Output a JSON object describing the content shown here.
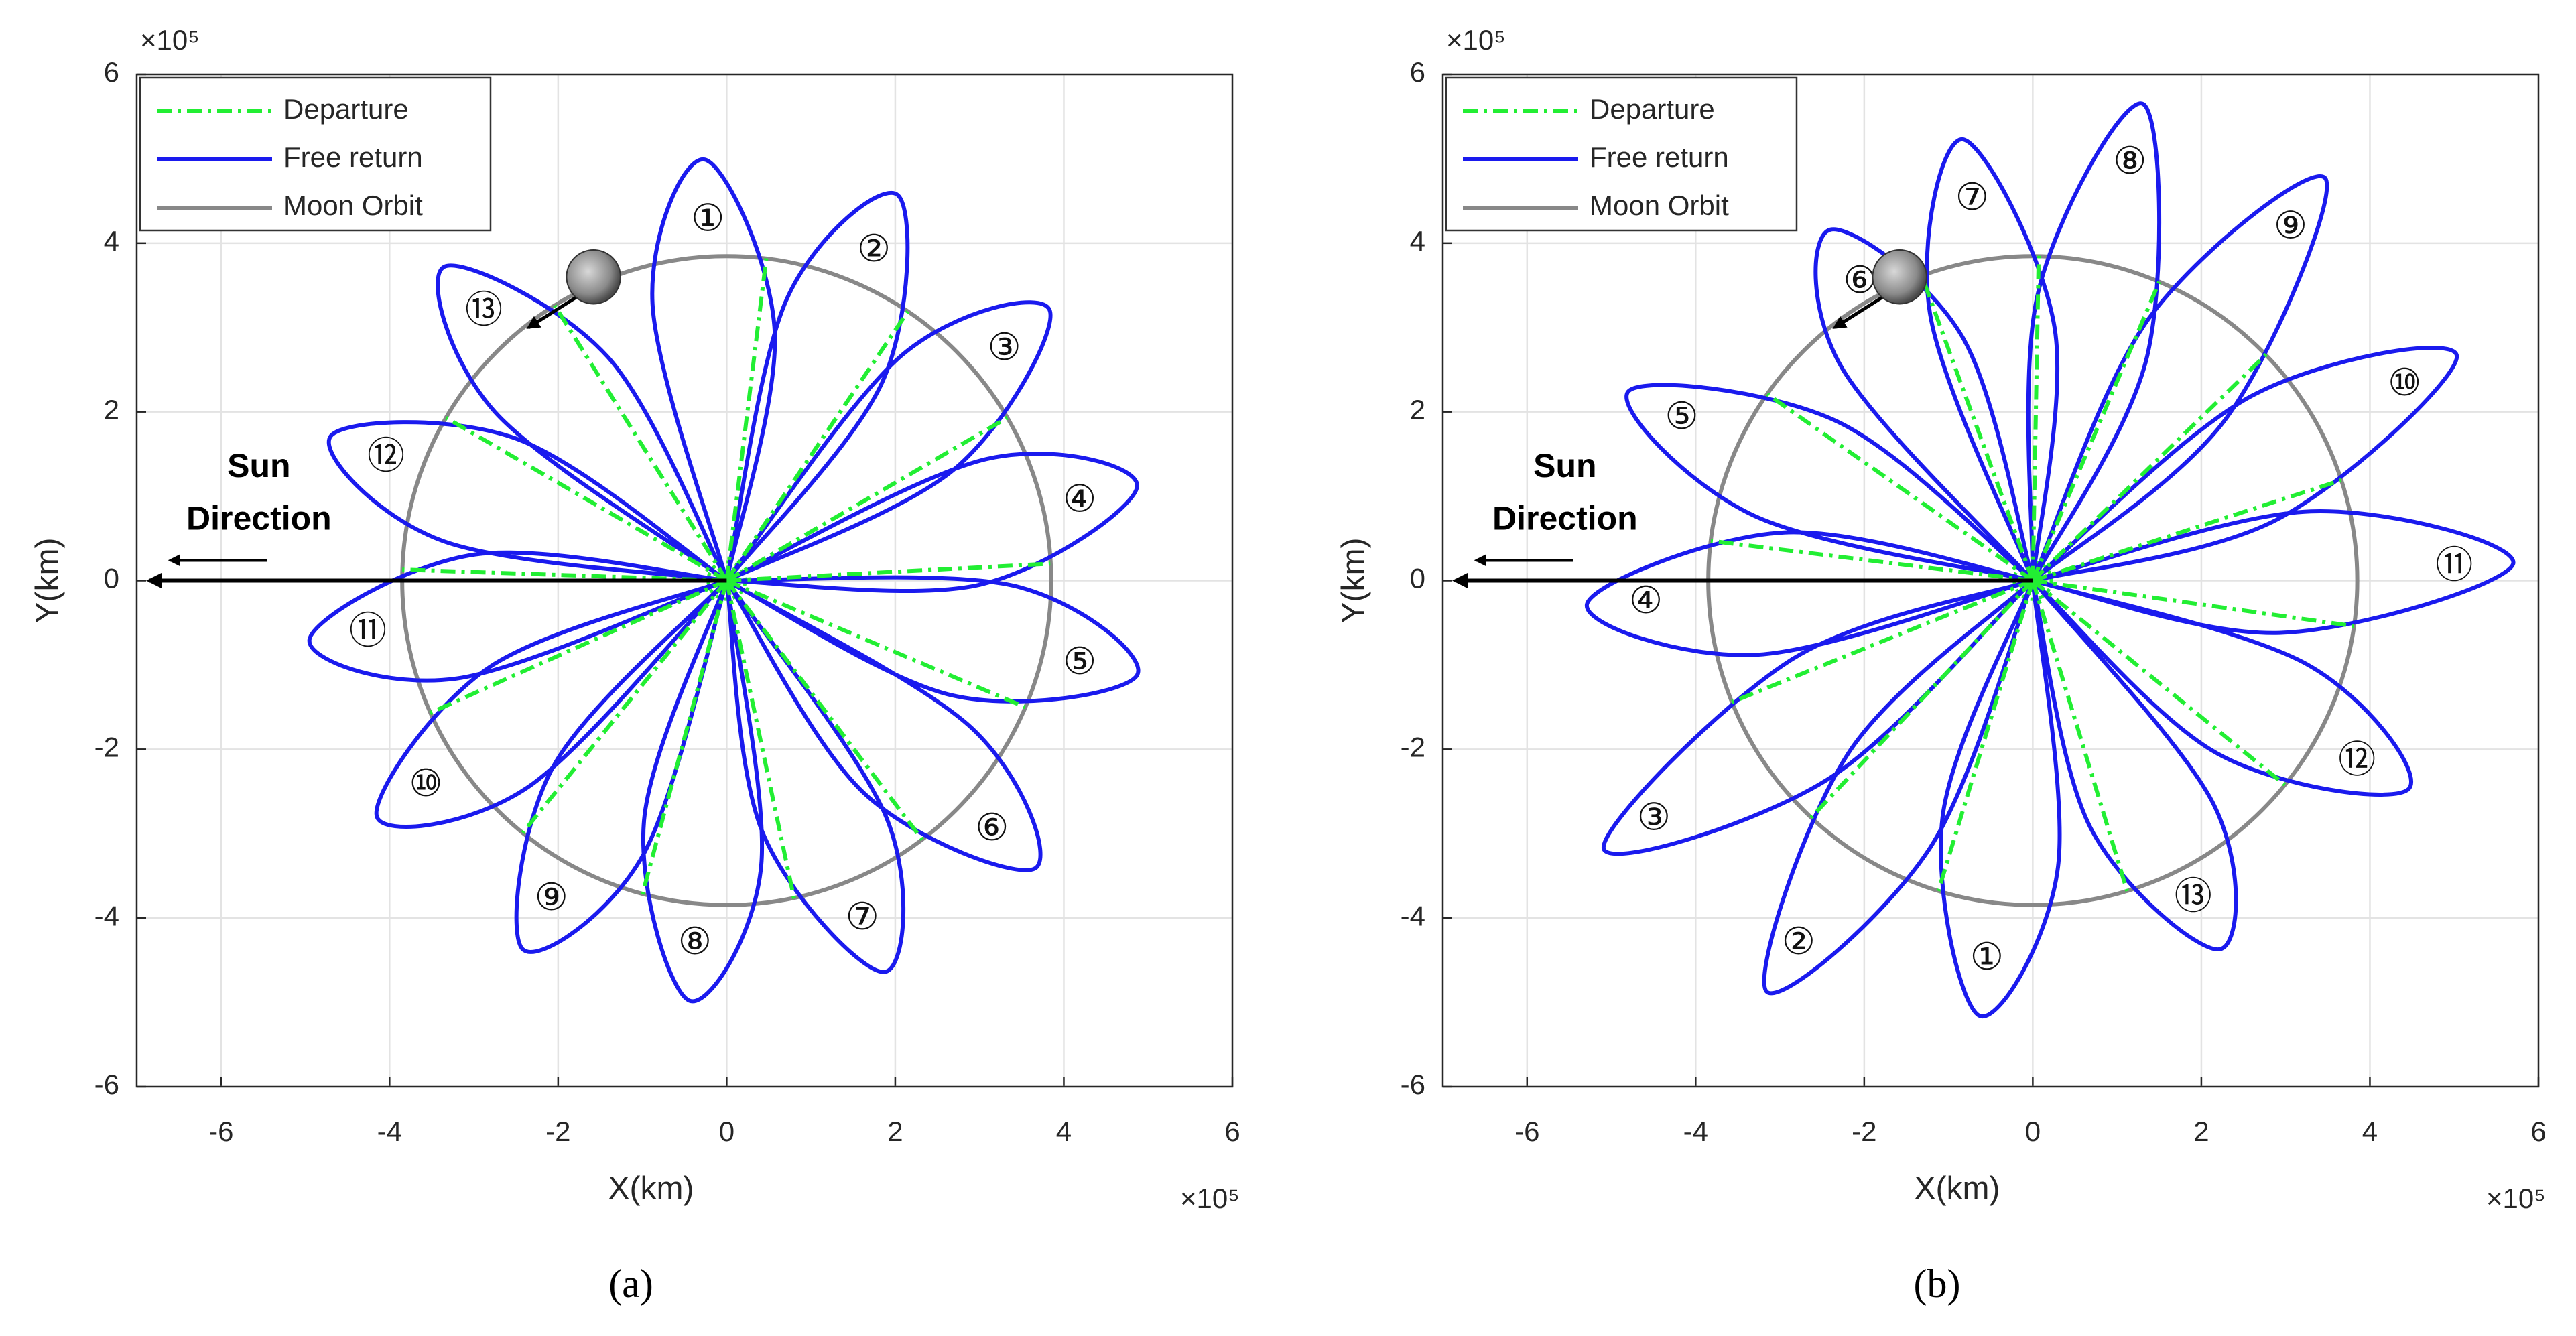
{
  "chart_data": [
    {
      "type": "line",
      "caption": "(a)",
      "x_label": "X(km)",
      "y_label": "Y(km)",
      "x_multiplier": "×10⁵",
      "y_multiplier": "×10⁵",
      "xlim": [
        -7,
        6
      ],
      "ylim": [
        -6,
        6
      ],
      "xticks": [
        -6,
        -4,
        -2,
        0,
        2,
        4,
        6
      ],
      "yticks": [
        -6,
        -4,
        -2,
        0,
        2,
        4,
        6
      ],
      "grid": true,
      "legend": "upper left",
      "annotation": [
        "Sun",
        "Direction"
      ],
      "loop_labels": [
        "①",
        "②",
        "③",
        "④",
        "⑤",
        "⑥",
        "⑦",
        "⑧",
        "⑨",
        "⑩",
        "⑪",
        "⑫",
        "⑬"
      ],
      "series": [
        {
          "name": "Departure",
          "color": "#22ee33",
          "line_style": "-.",
          "x": [
            0,
            0.47,
            null,
            0,
            2.15,
            null,
            0,
            3.33,
            null,
            0,
            3.84,
            null,
            0,
            3.54,
            null,
            0,
            2.32,
            null,
            0,
            0.8,
            null,
            0,
            -1.0,
            null,
            0,
            -2.42,
            null,
            0,
            -3.52,
            null,
            0,
            -3.85,
            null,
            0,
            -3.33,
            null,
            0,
            -2.04
          ],
          "y": [
            0,
            3.82,
            null,
            0,
            3.19,
            null,
            0,
            1.93,
            null,
            0,
            0.2,
            null,
            0,
            -1.5,
            null,
            0,
            -3.07,
            null,
            0,
            -3.77,
            null,
            0,
            -3.72,
            null,
            0,
            -2.99,
            null,
            0,
            -1.57,
            null,
            0,
            0.13,
            null,
            0,
            1.93,
            null,
            0,
            3.26
          ]
        },
        {
          "name": "Free return",
          "color": "#1a1aee",
          "line_style": "-",
          "x": [
            0,
            0.57,
            -0.26,
            -0.88,
            0,
            null,
            0,
            1.85,
            2.03,
            0.71,
            0,
            null,
            0,
            2.7,
            3.83,
            2.09,
            0,
            null,
            0,
            3.0,
            4.87,
            3.08,
            0,
            null,
            0,
            2.67,
            4.87,
            3.4,
            0,
            null,
            0,
            1.63,
            3.66,
            2.91,
            0,
            null,
            0,
            0.42,
            1.87,
            1.9,
            0,
            null,
            0,
            -0.98,
            -0.44,
            0.41,
            0,
            null,
            0,
            -2.05,
            -2.42,
            -0.99,
            0,
            null,
            0,
            -2.82,
            -4.15,
            -2.36,
            0,
            null,
            0,
            -2.98,
            -4.95,
            -3.2,
            0,
            null,
            0,
            -2.49,
            -4.7,
            -3.37,
            0,
            null,
            0,
            -1.41,
            -3.35,
            -2.75,
            0
          ],
          "y": [
            0,
            2.95,
            4.99,
            3.28,
            0,
            null,
            0,
            2.36,
            4.57,
            3.33,
            0,
            null,
            0,
            1.32,
            3.21,
            2.68,
            0,
            null,
            0,
            -0.05,
            1.12,
            1.44,
            0,
            null,
            0,
            -1.36,
            -1.12,
            -0.06,
            0,
            null,
            0,
            -2.52,
            -3.41,
            -1.75,
            0,
            null,
            0,
            -2.97,
            -4.64,
            -2.82,
            0,
            null,
            0,
            -2.84,
            -4.98,
            -3.37,
            0,
            null,
            0,
            -2.19,
            -4.37,
            -3.25,
            0,
            null,
            0,
            -1.03,
            -2.8,
            -2.45,
            0,
            null,
            0,
            0.31,
            -0.7,
            -1.16,
            0,
            null,
            0,
            1.68,
            1.71,
            0.47,
            0,
            null,
            0,
            2.65,
            3.72,
            2.0,
            0
          ]
        },
        {
          "name": "Moon Orbit",
          "color": "#888888",
          "line_style": "-",
          "radius": 3.85
        }
      ]
    },
    {
      "type": "line",
      "caption": "(b)",
      "x_label": "X(km)",
      "y_label": "Y(km)",
      "x_multiplier": "×10⁵",
      "y_multiplier": "×10⁵",
      "xlim": [
        -7,
        6
      ],
      "ylim": [
        -6,
        6
      ],
      "xticks": [
        -6,
        -4,
        -2,
        0,
        2,
        4,
        6
      ],
      "yticks": [
        -6,
        -4,
        -2,
        0,
        2,
        4,
        6
      ],
      "grid": true,
      "legend": "upper left",
      "annotation": [
        "Sun",
        "Direction"
      ],
      "loop_labels": [
        "①",
        "②",
        "③",
        "④",
        "⑤",
        "⑥",
        "⑦",
        "⑧",
        "⑨",
        "⑩",
        "⑪",
        "⑫",
        "⑬"
      ],
      "series": [
        {
          "name": "Departure",
          "color": "#22ee33",
          "line_style": "-.",
          "x": [
            0,
            -1.12,
            null,
            0,
            -2.63,
            null,
            0,
            -3.57,
            null,
            0,
            -3.82,
            null,
            0,
            -3.15,
            null,
            0,
            -1.32,
            null,
            0,
            0.07,
            null,
            0,
            1.5,
            null,
            0,
            2.77,
            null,
            0,
            3.66,
            null,
            0,
            3.81,
            null,
            0,
            2.99,
            null,
            0,
            1.12
          ],
          "y": [
            0,
            -3.68,
            null,
            0,
            -2.81,
            null,
            0,
            -1.44,
            null,
            0,
            0.47,
            null,
            0,
            2.21,
            null,
            0,
            3.62,
            null,
            0,
            3.85,
            null,
            0,
            3.54,
            null,
            0,
            2.68,
            null,
            0,
            1.19,
            null,
            0,
            -0.54,
            null,
            0,
            -2.42,
            null,
            0,
            -3.68
          ]
        },
        {
          "name": "Free return",
          "color": "#1a1aee",
          "line_style": "-",
          "x": [
            0,
            -1.07,
            -0.63,
            0.3,
            0,
            null,
            0,
            -2.19,
            -3.16,
            -1.22,
            0,
            null,
            0,
            -2.85,
            -5.09,
            -2.44,
            0,
            null,
            0,
            -2.95,
            -5.29,
            -3.28,
            0,
            null,
            0,
            -2.33,
            -4.8,
            -3.31,
            0,
            null,
            0,
            -0.83,
            -2.4,
            -2.27,
            0,
            null,
            0,
            0.26,
            -0.83,
            -1.22,
            0,
            null,
            0,
            1.36,
            1.31,
            0.06,
            0,
            null,
            0,
            2.3,
            3.47,
            1.38,
            0,
            null,
            0,
            2.91,
            5.03,
            2.6,
            0,
            null,
            0,
            2.93,
            5.7,
            3.3,
            0,
            null,
            0,
            2.19,
            4.46,
            3.25,
            0,
            null,
            0,
            0.68,
            2.22,
            2.14,
            0
          ],
          "y": [
            0,
            -2.8,
            -5.16,
            -3.39,
            0,
            null,
            0,
            -2.05,
            -4.87,
            -3.17,
            0,
            null,
            0,
            -0.93,
            -3.18,
            -2.36,
            0,
            null,
            0,
            0.57,
            -0.28,
            -0.88,
            0,
            null,
            0,
            1.89,
            2.24,
            0.77,
            0,
            null,
            0,
            2.88,
            4.16,
            2.53,
            0,
            null,
            0,
            2.99,
            5.23,
            3.17,
            0,
            null,
            0,
            2.67,
            5.65,
            3.4,
            0,
            null,
            0,
            1.93,
            4.77,
            3.11,
            0,
            null,
            0,
            0.73,
            2.67,
            2.19,
            0,
            null,
            0,
            -0.62,
            0.2,
            0.82,
            0,
            null,
            0,
            -2.05,
            -2.47,
            -0.99,
            0,
            null,
            0,
            -2.92,
            -4.37,
            -2.64,
            0
          ]
        },
        {
          "name": "Moon Orbit",
          "color": "#888888",
          "line_style": "-",
          "radius": 3.85
        }
      ]
    }
  ]
}
